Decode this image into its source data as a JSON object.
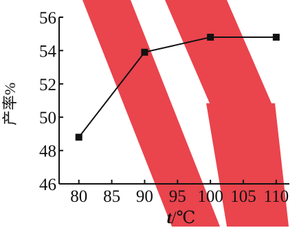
{
  "chart_data": {
    "type": "line",
    "title": "",
    "xlabel_var": "t",
    "xlabel_unit": "/℃",
    "ylabel": "产率%",
    "x": [
      80,
      90,
      100,
      110
    ],
    "series": [
      {
        "values": [
          48.8,
          53.9,
          54.8,
          54.8
        ]
      }
    ],
    "xlim": [
      77,
      112
    ],
    "ylim": [
      46,
      56
    ],
    "xticks": [
      "80",
      "85",
      "90",
      "95",
      "100",
      "105",
      "110"
    ],
    "yticks": [
      "46",
      "48",
      "50",
      "52",
      "54",
      "56"
    ],
    "grid": false,
    "legend": "none",
    "marker": "square",
    "colors": {
      "line": "#111111",
      "marker": "#111111",
      "watermark": "#e8303a"
    }
  }
}
